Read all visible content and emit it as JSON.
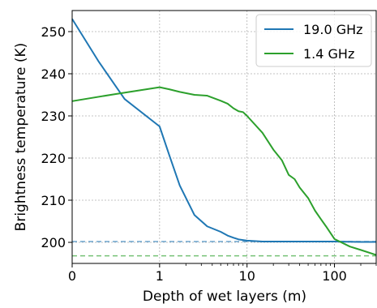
{
  "chart_data": {
    "type": "line",
    "xlabel": "Depth of wet layers (m)",
    "ylabel": "Brightness temperature (K)",
    "xscale": "symlog",
    "xlim": [
      0,
      300
    ],
    "ylim": [
      195,
      255
    ],
    "xticks": [
      {
        "value": 0,
        "label": "0"
      },
      {
        "value": 1,
        "label": "1"
      },
      {
        "value": 10,
        "label": "10"
      },
      {
        "value": 100,
        "label": "100"
      }
    ],
    "yticks": [
      200,
      210,
      220,
      230,
      240,
      250
    ],
    "grid": true,
    "legend_position": "top-right",
    "series": [
      {
        "name": "19.0 GHz",
        "color": "#1f77b4",
        "x": [
          0,
          0.3,
          0.6,
          1,
          1.3,
          1.7,
          2.5,
          3.5,
          5,
          6,
          7,
          8,
          10,
          15,
          20,
          30,
          50,
          100,
          200,
          300
        ],
        "y": [
          253,
          243,
          234,
          227.5,
          220.5,
          213.5,
          206.5,
          203.8,
          202.5,
          201.6,
          201.1,
          200.7,
          200.4,
          200.2,
          200.2,
          200.2,
          200.2,
          200.2,
          200.1,
          200.1
        ]
      },
      {
        "name": "1.4 GHz",
        "color": "#2ca02c",
        "x": [
          0,
          0.5,
          1,
          1.3,
          1.7,
          2.5,
          3.5,
          5,
          6,
          7,
          8,
          9,
          10,
          15,
          20,
          25,
          30,
          35,
          40,
          50,
          60,
          70,
          80,
          100,
          150,
          200,
          300
        ],
        "y": [
          233.5,
          235.2,
          236.8,
          236.3,
          235.7,
          235,
          234.8,
          233.6,
          232.9,
          231.8,
          231.1,
          230.9,
          230,
          226,
          222,
          219.5,
          216,
          215,
          213,
          210.5,
          207.5,
          205.5,
          203.8,
          200.8,
          199,
          198.2,
          197
        ]
      }
    ],
    "reference_lines": [
      {
        "y": 200.2,
        "color": "#1f77b4",
        "style": "dashed"
      },
      {
        "y": 196.8,
        "color": "#2ca02c",
        "style": "dashed"
      }
    ]
  }
}
